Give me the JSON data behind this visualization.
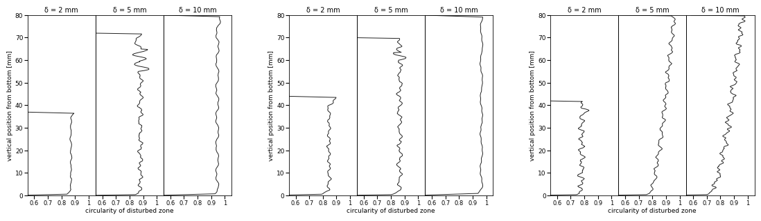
{
  "panel_titles": [
    [
      "δ = 2 mm",
      "δ = 5 mm",
      "δ = 10 mm"
    ],
    [
      "δ = 2 mm",
      "δ = 5 mm",
      "δ = 10 mm"
    ],
    [
      "δ = 2 mm",
      "δ = 5 mm",
      "δ = 10 mm"
    ]
  ],
  "ylabel": "vertical position from bottom [mm]",
  "xlabel": "circularity of disturbed zone",
  "ylim": [
    0,
    80
  ],
  "yticks": [
    0,
    10,
    20,
    30,
    40,
    50,
    60,
    70,
    80
  ],
  "xticks": [
    0.6,
    0.7,
    0.8,
    0.9,
    1.0
  ],
  "xticklabels": [
    "0.6",
    "0.7",
    "0.8",
    "0.9",
    "1"
  ],
  "line_color": "#222222",
  "line_width": 0.7,
  "background_color": "#ffffff",
  "panel_bg": "#ffffff",
  "xlim_all": [
    0.55,
    1.05
  ]
}
